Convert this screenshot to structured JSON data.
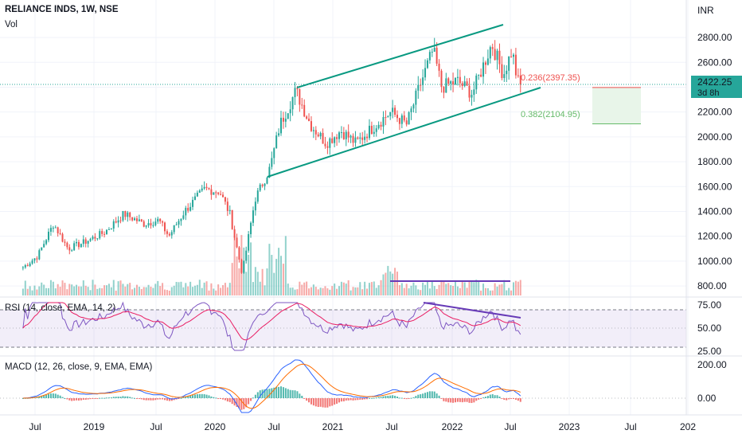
{
  "header": {
    "symbol": "RELIANCE INDS, 1W, NSE",
    "volume_label": "Vol",
    "rsi_label": "RSI (14, close, EMA, 14, 2)",
    "macd_label": "MACD (12, 26, close, 9, EMA, EMA)"
  },
  "price_axis": {
    "unit": "INR",
    "ticks": [
      "2800.00",
      "2600.00",
      "2400.00",
      "2200.00",
      "2000.00",
      "1800.00",
      "1600.00",
      "1400.00",
      "1200.00",
      "1000.00",
      "800.00"
    ],
    "last_price": "2422.25",
    "countdown": "3d 8h",
    "last_price_color": "#26a69a"
  },
  "rsi_axis": {
    "ticks": [
      "75.00",
      "50.00",
      "25.00"
    ]
  },
  "macd_axis": {
    "ticks": [
      "200.00",
      "0.00"
    ]
  },
  "time_axis": {
    "labels": [
      "Jul",
      "2019",
      "Jul",
      "2020",
      "Jul",
      "2021",
      "Jul",
      "2022",
      "Jul",
      "2023",
      "Jul",
      "202"
    ]
  },
  "fib_levels": [
    {
      "label": "0.236(2397.35)",
      "color": "#ef5350"
    },
    {
      "label": "0.382(2104.95)",
      "color": "#66bb6a"
    }
  ],
  "colors": {
    "up": "#26a69a",
    "down": "#ef5350",
    "channel": "#089981",
    "trendline": "#673ab7",
    "rsi": "#7e57c2",
    "rsi_ma": "#e91e63",
    "macd": "#2962ff",
    "signal": "#ff6d00"
  },
  "chart_data": {
    "type": "candlestick",
    "title": "RELIANCE INDS, 1W, NSE",
    "ylabel": "INR",
    "ylim": [
      760,
      2980
    ],
    "x_range": [
      "2018-06",
      "2023-12"
    ],
    "price_path": [
      [
        "2018-06-01",
        950
      ],
      [
        "2018-07-15",
        1040
      ],
      [
        "2018-09-01",
        1300
      ],
      [
        "2018-10-15",
        1100
      ],
      [
        "2018-12-01",
        1150
      ],
      [
        "2019-02-01",
        1230
      ],
      [
        "2019-04-01",
        1380
      ],
      [
        "2019-06-01",
        1300
      ],
      [
        "2019-07-15",
        1330
      ],
      [
        "2019-08-15",
        1200
      ],
      [
        "2019-10-01",
        1400
      ],
      [
        "2019-12-01",
        1580
      ],
      [
        "2020-01-15",
        1560
      ],
      [
        "2020-02-15",
        1380
      ],
      [
        "2020-03-23",
        900
      ],
      [
        "2020-05-01",
        1500
      ],
      [
        "2020-06-15",
        1750
      ],
      [
        "2020-07-15",
        2100
      ],
      [
        "2020-09-01",
        2370
      ],
      [
        "2020-10-15",
        2100
      ],
      [
        "2020-12-01",
        1950
      ],
      [
        "2021-01-15",
        2050
      ],
      [
        "2021-03-01",
        1950
      ],
      [
        "2021-05-01",
        2100
      ],
      [
        "2021-06-15",
        2200
      ],
      [
        "2021-08-01",
        2100
      ],
      [
        "2021-09-15",
        2450
      ],
      [
        "2021-10-20",
        2700
      ],
      [
        "2021-11-15",
        2400
      ],
      [
        "2022-01-01",
        2450
      ],
      [
        "2022-02-15",
        2350
      ],
      [
        "2022-04-15",
        2750
      ],
      [
        "2022-05-20",
        2500
      ],
      [
        "2022-06-15",
        2700
      ],
      [
        "2022-07-01",
        2450
      ],
      [
        "2022-07-15",
        2422.25
      ]
    ],
    "last_close": 2422.25,
    "volume_reference_line": "horizontal line drawn from Jul 2021 to Jul 2022",
    "rsi": {
      "levels": [
        70,
        50,
        30
      ],
      "range": [
        20,
        80
      ],
      "current": 48
    },
    "macd": {
      "zero": 0,
      "peak": 200
    }
  }
}
